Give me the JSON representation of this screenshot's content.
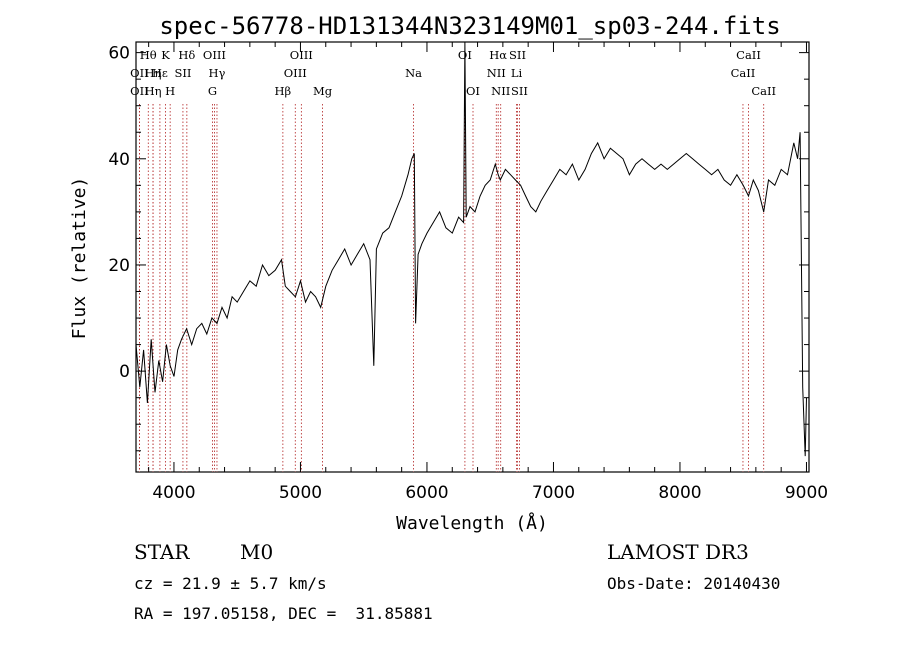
{
  "title": "spec-56778-HD131344N323149M01_sp03-244.fits",
  "footer": {
    "object_class": "STAR",
    "subclass": "M0",
    "redshift": "cz = 21.9 ± 5.7 km/s",
    "coords": "RA = 197.05158, DEC =  31.85881",
    "survey": "LAMOST DR3",
    "obs_date": "Obs-Date: 20140430"
  },
  "chart_data": {
    "type": "line",
    "title": "spec-56778-HD131344N323149M01_sp03-244.fits",
    "xlabel": "Wavelength (Å)",
    "ylabel": "Flux (relative)",
    "xlim": [
      3700,
      9020
    ],
    "ylim": [
      -19,
      62
    ],
    "xticks": [
      4000,
      5000,
      6000,
      7000,
      8000,
      9000
    ],
    "yticks": [
      0,
      20,
      40,
      60
    ],
    "grid": false,
    "series": [
      {
        "color": "#000000",
        "points": [
          [
            3700,
            5
          ],
          [
            3730,
            -3
          ],
          [
            3760,
            4
          ],
          [
            3790,
            -6
          ],
          [
            3820,
            6
          ],
          [
            3850,
            -4
          ],
          [
            3880,
            2
          ],
          [
            3910,
            -2
          ],
          [
            3940,
            5
          ],
          [
            3970,
            1
          ],
          [
            4000,
            -1
          ],
          [
            4030,
            4
          ],
          [
            4060,
            6
          ],
          [
            4100,
            8
          ],
          [
            4140,
            5
          ],
          [
            4180,
            8
          ],
          [
            4220,
            9
          ],
          [
            4260,
            7
          ],
          [
            4300,
            10
          ],
          [
            4340,
            9
          ],
          [
            4380,
            12
          ],
          [
            4420,
            10
          ],
          [
            4460,
            14
          ],
          [
            4500,
            13
          ],
          [
            4550,
            15
          ],
          [
            4600,
            17
          ],
          [
            4650,
            16
          ],
          [
            4700,
            20
          ],
          [
            4750,
            18
          ],
          [
            4800,
            19
          ],
          [
            4850,
            21
          ],
          [
            4880,
            16
          ],
          [
            4920,
            15
          ],
          [
            4960,
            14
          ],
          [
            5000,
            17
          ],
          [
            5040,
            13
          ],
          [
            5080,
            15
          ],
          [
            5120,
            14
          ],
          [
            5160,
            12
          ],
          [
            5200,
            16
          ],
          [
            5250,
            19
          ],
          [
            5300,
            21
          ],
          [
            5350,
            23
          ],
          [
            5400,
            20
          ],
          [
            5450,
            22
          ],
          [
            5500,
            24
          ],
          [
            5550,
            21
          ],
          [
            5580,
            1
          ],
          [
            5600,
            23
          ],
          [
            5650,
            26
          ],
          [
            5700,
            27
          ],
          [
            5750,
            30
          ],
          [
            5800,
            33
          ],
          [
            5850,
            37
          ],
          [
            5880,
            40
          ],
          [
            5900,
            41
          ],
          [
            5910,
            9
          ],
          [
            5930,
            22
          ],
          [
            5960,
            24
          ],
          [
            6000,
            26
          ],
          [
            6050,
            28
          ],
          [
            6100,
            30
          ],
          [
            6150,
            27
          ],
          [
            6200,
            26
          ],
          [
            6250,
            29
          ],
          [
            6290,
            28
          ],
          [
            6300,
            64
          ],
          [
            6310,
            29
          ],
          [
            6340,
            31
          ],
          [
            6380,
            30
          ],
          [
            6420,
            33
          ],
          [
            6460,
            35
          ],
          [
            6500,
            36
          ],
          [
            6540,
            39
          ],
          [
            6563,
            37
          ],
          [
            6580,
            36
          ],
          [
            6620,
            38
          ],
          [
            6660,
            37
          ],
          [
            6700,
            36
          ],
          [
            6740,
            35
          ],
          [
            6780,
            33
          ],
          [
            6820,
            31
          ],
          [
            6860,
            30
          ],
          [
            6900,
            32
          ],
          [
            6950,
            34
          ],
          [
            7000,
            36
          ],
          [
            7050,
            38
          ],
          [
            7100,
            37
          ],
          [
            7150,
            39
          ],
          [
            7200,
            36
          ],
          [
            7250,
            38
          ],
          [
            7300,
            41
          ],
          [
            7350,
            43
          ],
          [
            7400,
            40
          ],
          [
            7450,
            42
          ],
          [
            7500,
            41
          ],
          [
            7550,
            40
          ],
          [
            7600,
            37
          ],
          [
            7650,
            39
          ],
          [
            7700,
            40
          ],
          [
            7750,
            39
          ],
          [
            7800,
            38
          ],
          [
            7850,
            39
          ],
          [
            7900,
            38
          ],
          [
            7950,
            39
          ],
          [
            8000,
            40
          ],
          [
            8050,
            41
          ],
          [
            8100,
            40
          ],
          [
            8150,
            39
          ],
          [
            8200,
            38
          ],
          [
            8250,
            37
          ],
          [
            8300,
            38
          ],
          [
            8350,
            36
          ],
          [
            8400,
            35
          ],
          [
            8450,
            37
          ],
          [
            8500,
            35
          ],
          [
            8542,
            33
          ],
          [
            8580,
            36
          ],
          [
            8620,
            34
          ],
          [
            8662,
            30
          ],
          [
            8700,
            36
          ],
          [
            8750,
            35
          ],
          [
            8800,
            38
          ],
          [
            8850,
            37
          ],
          [
            8900,
            43
          ],
          [
            8930,
            40
          ],
          [
            8950,
            45
          ],
          [
            8970,
            -3
          ],
          [
            8990,
            -16
          ],
          [
            9000,
            -5
          ]
        ]
      }
    ],
    "spectral_lines": [
      {
        "label": "Hθ",
        "wavelength": 3797,
        "row": 0
      },
      {
        "label": "OII",
        "wavelength": 3727,
        "row": 1
      },
      {
        "label": "OII",
        "wavelength": 3727,
        "row": 2
      },
      {
        "label": "Hη",
        "wavelength": 3835,
        "row": 1
      },
      {
        "label": "Hη",
        "wavelength": 3835,
        "row": 2
      },
      {
        "label": "Hε",
        "wavelength": 3889,
        "row": 1
      },
      {
        "label": "K",
        "wavelength": 3934,
        "row": 0
      },
      {
        "label": "H",
        "wavelength": 3970,
        "row": 2
      },
      {
        "label": "SII",
        "wavelength": 4071,
        "row": 1
      },
      {
        "label": "Hδ",
        "wavelength": 4102,
        "row": 0
      },
      {
        "label": "OIII",
        "wavelength": 4320,
        "row": 0
      },
      {
        "label": "Hγ",
        "wavelength": 4340,
        "row": 1
      },
      {
        "label": "G",
        "wavelength": 4304,
        "row": 2
      },
      {
        "label": "Hβ",
        "wavelength": 4861,
        "row": 2
      },
      {
        "label": "OIII",
        "wavelength": 4959,
        "row": 1
      },
      {
        "label": "OIII",
        "wavelength": 5007,
        "row": 0
      },
      {
        "label": "Mg",
        "wavelength": 5175,
        "row": 2
      },
      {
        "label": "Na",
        "wavelength": 5894,
        "row": 1
      },
      {
        "label": "OI",
        "wavelength": 6300,
        "row": 0
      },
      {
        "label": "OI",
        "wavelength": 6364,
        "row": 2
      },
      {
        "label": "Hα",
        "wavelength": 6563,
        "row": 0
      },
      {
        "label": "NII",
        "wavelength": 6548,
        "row": 1
      },
      {
        "label": "NII",
        "wavelength": 6583,
        "row": 2
      },
      {
        "label": "SII",
        "wavelength": 6716,
        "row": 0
      },
      {
        "label": "Li",
        "wavelength": 6708,
        "row": 1
      },
      {
        "label": "SII",
        "wavelength": 6731,
        "row": 2
      },
      {
        "label": "CaII",
        "wavelength": 8542,
        "row": 0
      },
      {
        "label": "CaII",
        "wavelength": 8498,
        "row": 1
      },
      {
        "label": "CaII",
        "wavelength": 8662,
        "row": 2
      }
    ]
  }
}
